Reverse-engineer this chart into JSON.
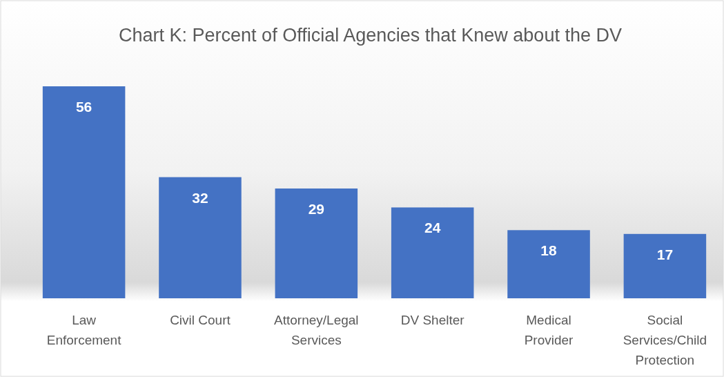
{
  "chart_data": {
    "type": "bar",
    "title": "Chart K: Percent of Official Agencies that Knew about the DV",
    "categories": [
      "Law Enforcement",
      "Civil Court",
      "Attorney/Legal Services",
      "DV Shelter",
      "Medical Provider",
      "Social Services/Child Protection"
    ],
    "values": [
      56,
      32,
      29,
      24,
      18,
      17
    ],
    "color": "#4472c4",
    "data_labels": true
  }
}
